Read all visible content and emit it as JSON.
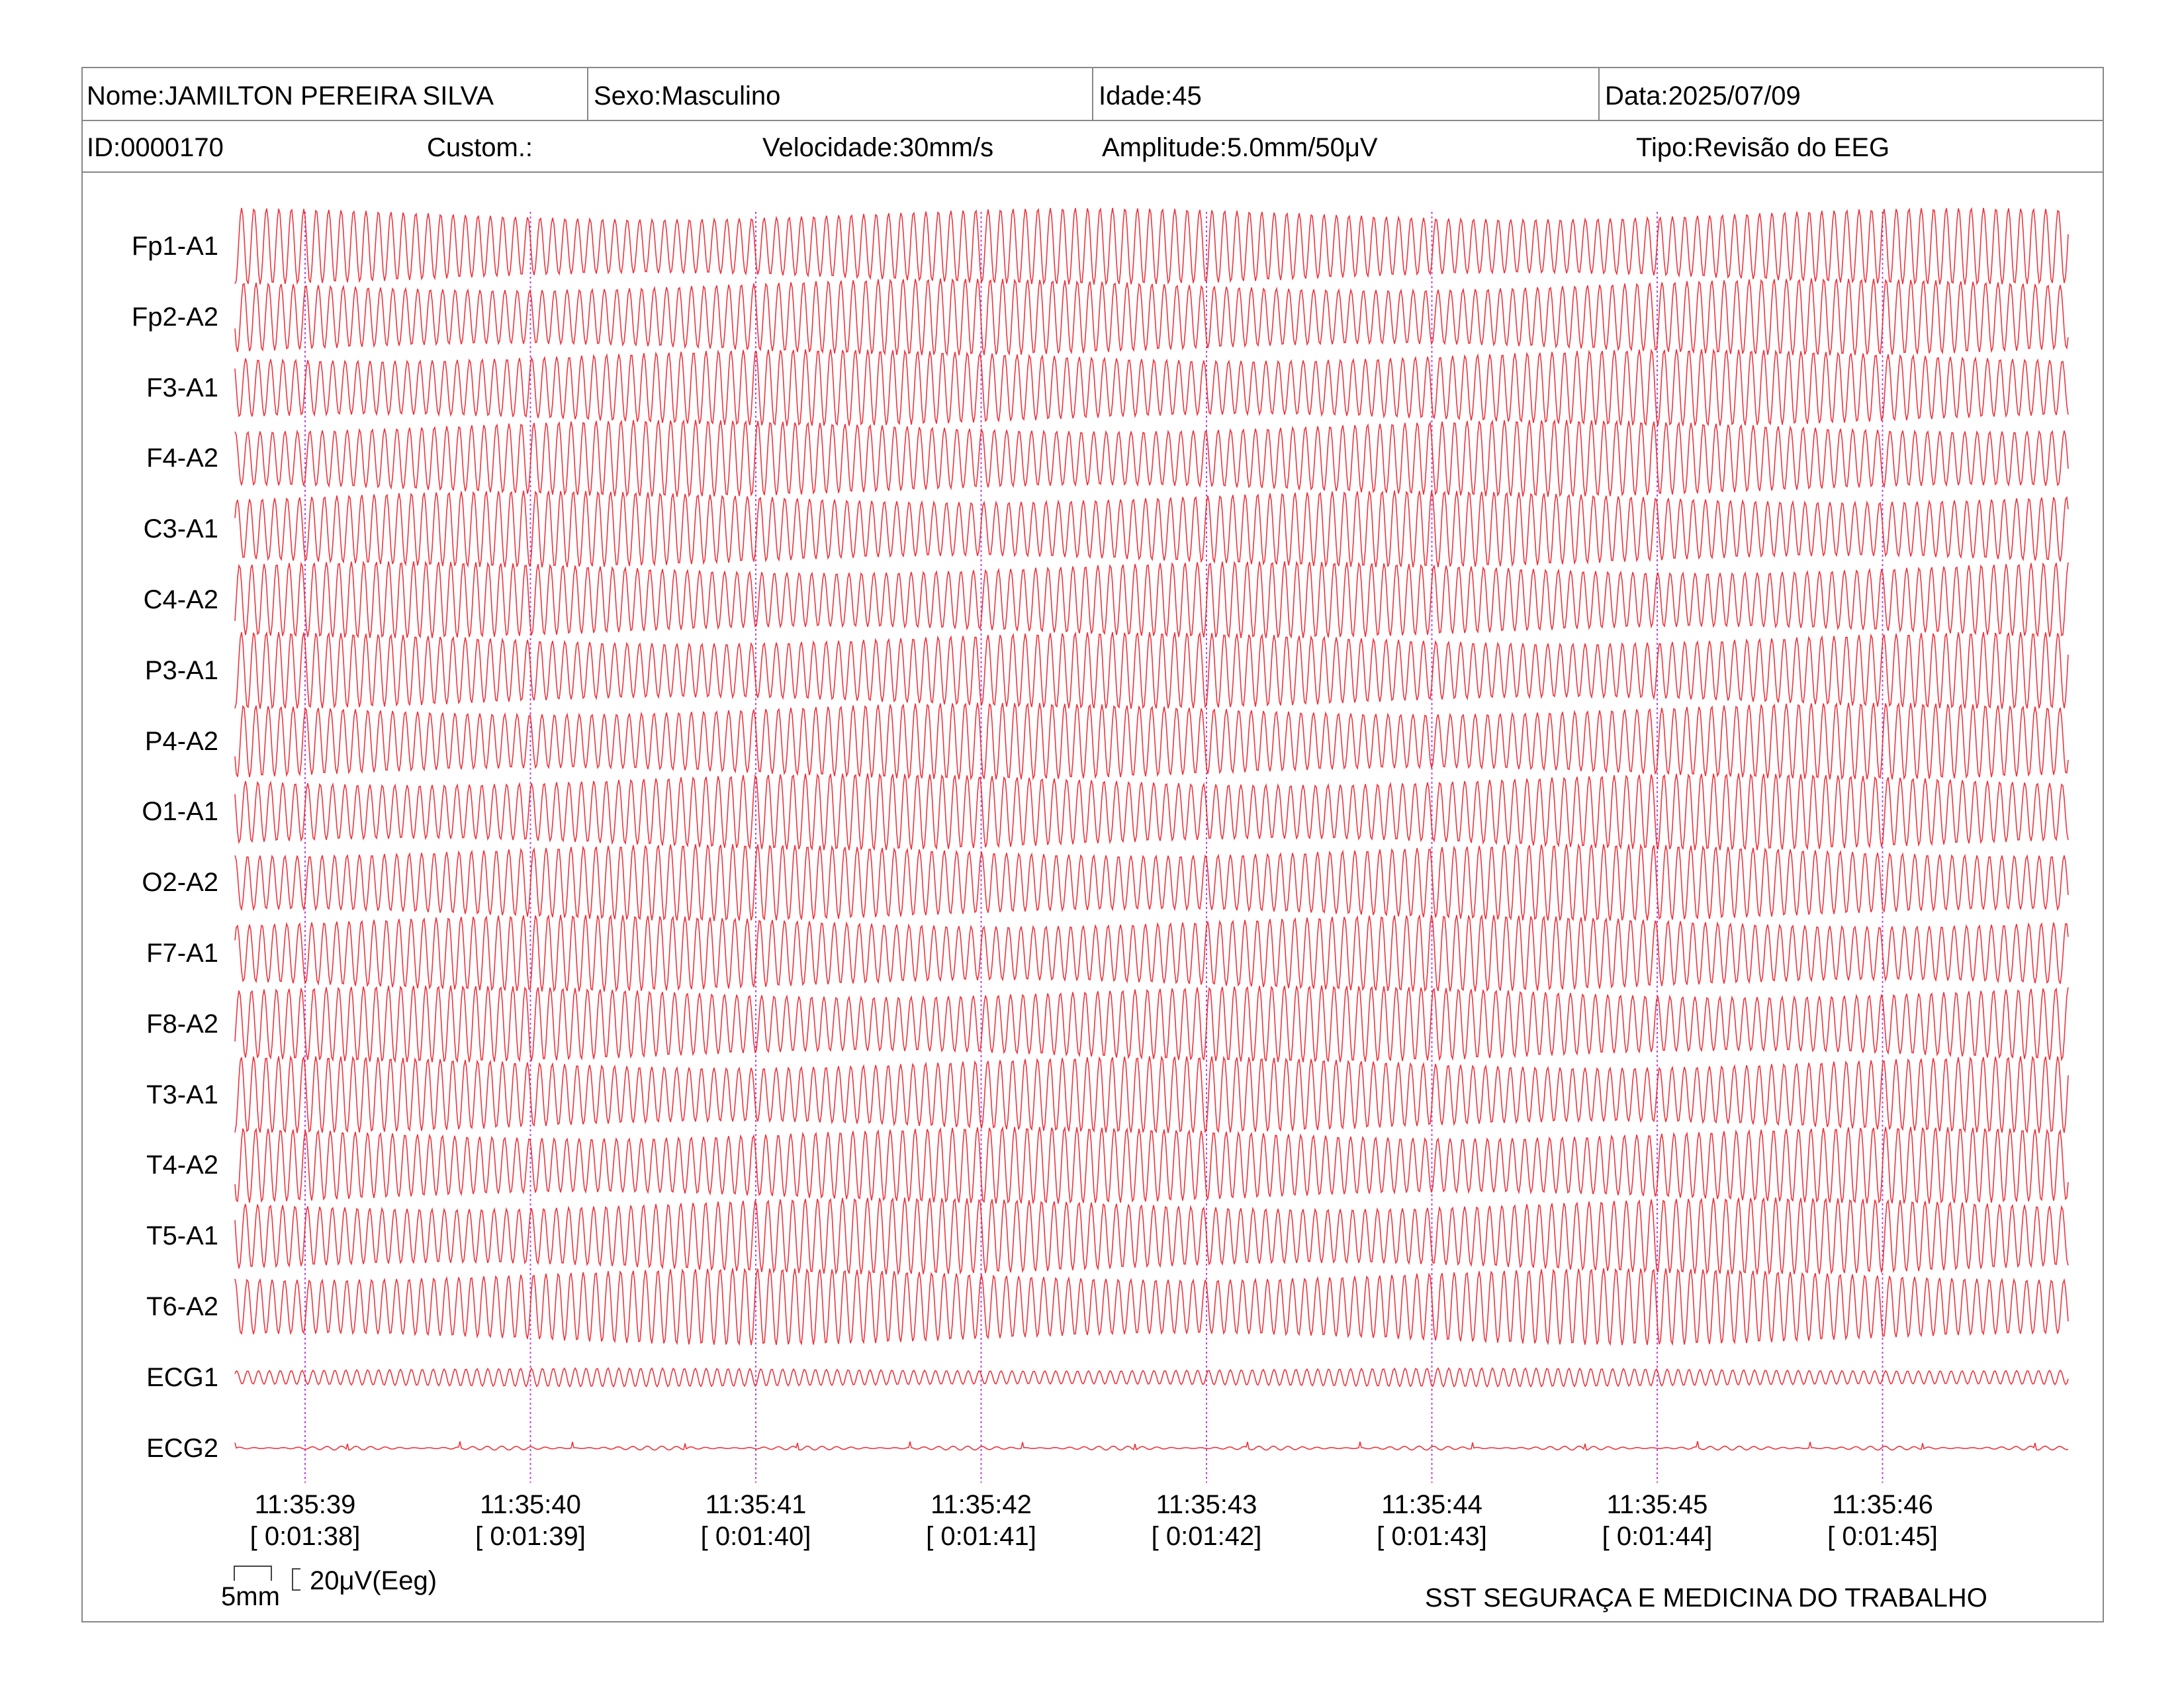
{
  "header": {
    "nome": "Nome:JAMILTON PEREIRA SILVA",
    "sexo": "Sexo:Masculino",
    "idade": "Idade:45",
    "data": "Data:2025/07/09",
    "id": "ID:0000170",
    "custom": "Custom.:",
    "velocidade": "Velocidade:30mm/s",
    "amplitude": "Amplitude:5.0mm/50μV",
    "tipo": "Tipo:Revisão do EEG"
  },
  "channels": [
    "Fp1-A1",
    "Fp2-A2",
    "F3-A1",
    "F4-A2",
    "C3-A1",
    "C4-A2",
    "P3-A1",
    "P4-A2",
    "O1-A1",
    "O2-A2",
    "F7-A1",
    "F8-A2",
    "T3-A1",
    "T4-A2",
    "T5-A1",
    "T6-A2",
    "ECG1",
    "ECG2"
  ],
  "time_marks": [
    {
      "clock": "11:35:39",
      "elapsed": "[ 0:01:38]"
    },
    {
      "clock": "11:35:40",
      "elapsed": "[ 0:01:39]"
    },
    {
      "clock": "11:35:41",
      "elapsed": "[ 0:01:40]"
    },
    {
      "clock": "11:35:42",
      "elapsed": "[ 0:01:41]"
    },
    {
      "clock": "11:35:43",
      "elapsed": "[ 0:01:42]"
    },
    {
      "clock": "11:35:44",
      "elapsed": "[ 0:01:43]"
    },
    {
      "clock": "11:35:45",
      "elapsed": "[ 0:01:44]"
    },
    {
      "clock": "11:35:46",
      "elapsed": "[ 0:01:45]"
    }
  ],
  "scale": {
    "time": "5mm",
    "amplitude": "20μV(Eeg)"
  },
  "footer": "SST SEGURAÇA E MEDICINA DO TRABALHO",
  "colors": {
    "trace": "#e8202a",
    "marker": "#c040e0",
    "border": "#888888"
  }
}
